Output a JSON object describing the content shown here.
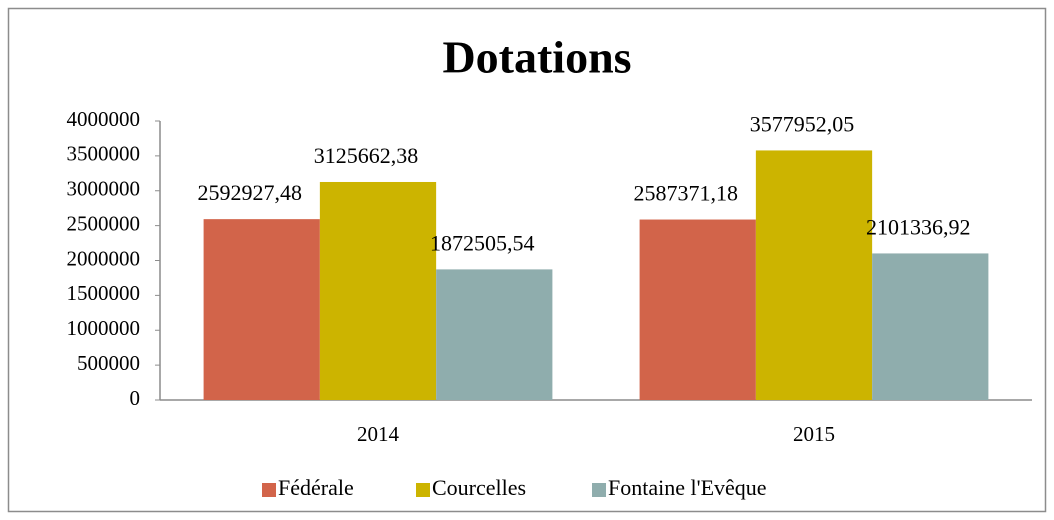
{
  "chart_data": {
    "type": "bar",
    "title": "Dotations",
    "categories": [
      "2014",
      "2015"
    ],
    "series": [
      {
        "name": "Fédérale",
        "color": "#d2644a",
        "values": [
          2592927.48,
          2587371.18
        ],
        "value_labels": [
          "2592927,48",
          "2587371,18"
        ]
      },
      {
        "name": "Courcelles",
        "color": "#ccb400",
        "values": [
          3125662.38,
          3577952.05
        ],
        "value_labels": [
          "3125662,38",
          "3577952,05"
        ]
      },
      {
        "name": "Fontaine l'Evêque",
        "color": "#8fadad",
        "values": [
          1872505.54,
          2101336.92
        ],
        "value_labels": [
          "1872505,54",
          "2101336,92"
        ]
      }
    ],
    "ylim": [
      0,
      4000000
    ],
    "yticks": [
      0,
      500000,
      1000000,
      1500000,
      2000000,
      2500000,
      3000000,
      3500000,
      4000000
    ],
    "grid": false,
    "legend": "bottom"
  }
}
